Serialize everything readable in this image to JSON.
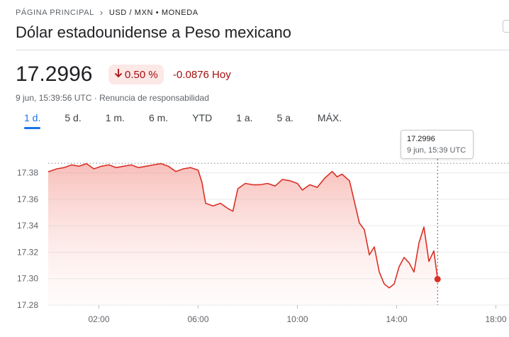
{
  "breadcrumb": {
    "home": "PÁGINA PRINCIPAL",
    "current": "USD / MXN • MONEDA"
  },
  "title": "Dólar estadounidense a Peso mexicano",
  "quote": {
    "price": "17.2996",
    "change_pct": "0.50 %",
    "change_abs": "-0.0876 Hoy",
    "timestamp": "9 jun, 15:39:56 UTC",
    "disclaimer": "Renuncia de responsabilidad"
  },
  "tabs": [
    "1 d.",
    "5 d.",
    "1 m.",
    "6 m.",
    "YTD",
    "1 a.",
    "5 a.",
    "MÁX."
  ],
  "active_tab": "1 d.",
  "tooltip": {
    "value": "17.2996",
    "time": "9 jun, 15:39 UTC"
  },
  "colors": {
    "negative": "#a50e0e",
    "line": "#d93025",
    "accent": "#1a73e8"
  },
  "chart_data": {
    "type": "area",
    "xlabel": "",
    "ylabel": "",
    "x_tick_labels": [
      "02:00",
      "06:00",
      "10:00",
      "14:00",
      "18:00"
    ],
    "x_ticks_hours": [
      2,
      6,
      10,
      14,
      18
    ],
    "y_ticks": [
      17.28,
      17.3,
      17.32,
      17.34,
      17.36,
      17.38
    ],
    "ylim": [
      17.28,
      17.3873
    ],
    "xlim_hours": [
      0,
      18
    ],
    "previous_close": 17.3872,
    "series": [
      {
        "x_hours": [
          0.0,
          0.3,
          0.6,
          0.9,
          1.2,
          1.5,
          1.8,
          2.1,
          2.4,
          2.7,
          3.0,
          3.3,
          3.6,
          3.9,
          4.2,
          4.5,
          4.8,
          5.1,
          5.4,
          5.7,
          6.0,
          6.15,
          6.3,
          6.6,
          6.9,
          7.2,
          7.4,
          7.6,
          7.9,
          8.2,
          8.5,
          8.8,
          9.1,
          9.4,
          9.7,
          10.0,
          10.2,
          10.5,
          10.8,
          11.1,
          11.4,
          11.6,
          11.8,
          12.1,
          12.3,
          12.5,
          12.7,
          12.9,
          13.1,
          13.3,
          13.5,
          13.7,
          13.9,
          14.1,
          14.3,
          14.5,
          14.7,
          14.9,
          15.1,
          15.3,
          15.5,
          15.65
        ],
        "values": [
          17.381,
          17.383,
          17.384,
          17.386,
          17.385,
          17.387,
          17.383,
          17.385,
          17.386,
          17.384,
          17.385,
          17.386,
          17.384,
          17.385,
          17.386,
          17.387,
          17.385,
          17.381,
          17.383,
          17.384,
          17.382,
          17.373,
          17.357,
          17.355,
          17.357,
          17.353,
          17.351,
          17.368,
          17.372,
          17.371,
          17.371,
          17.372,
          17.37,
          17.375,
          17.374,
          17.372,
          17.367,
          17.371,
          17.369,
          17.376,
          17.381,
          17.377,
          17.379,
          17.374,
          17.358,
          17.342,
          17.337,
          17.318,
          17.324,
          17.305,
          17.296,
          17.293,
          17.296,
          17.309,
          17.316,
          17.312,
          17.305,
          17.327,
          17.339,
          17.313,
          17.321,
          17.2996
        ]
      }
    ]
  }
}
